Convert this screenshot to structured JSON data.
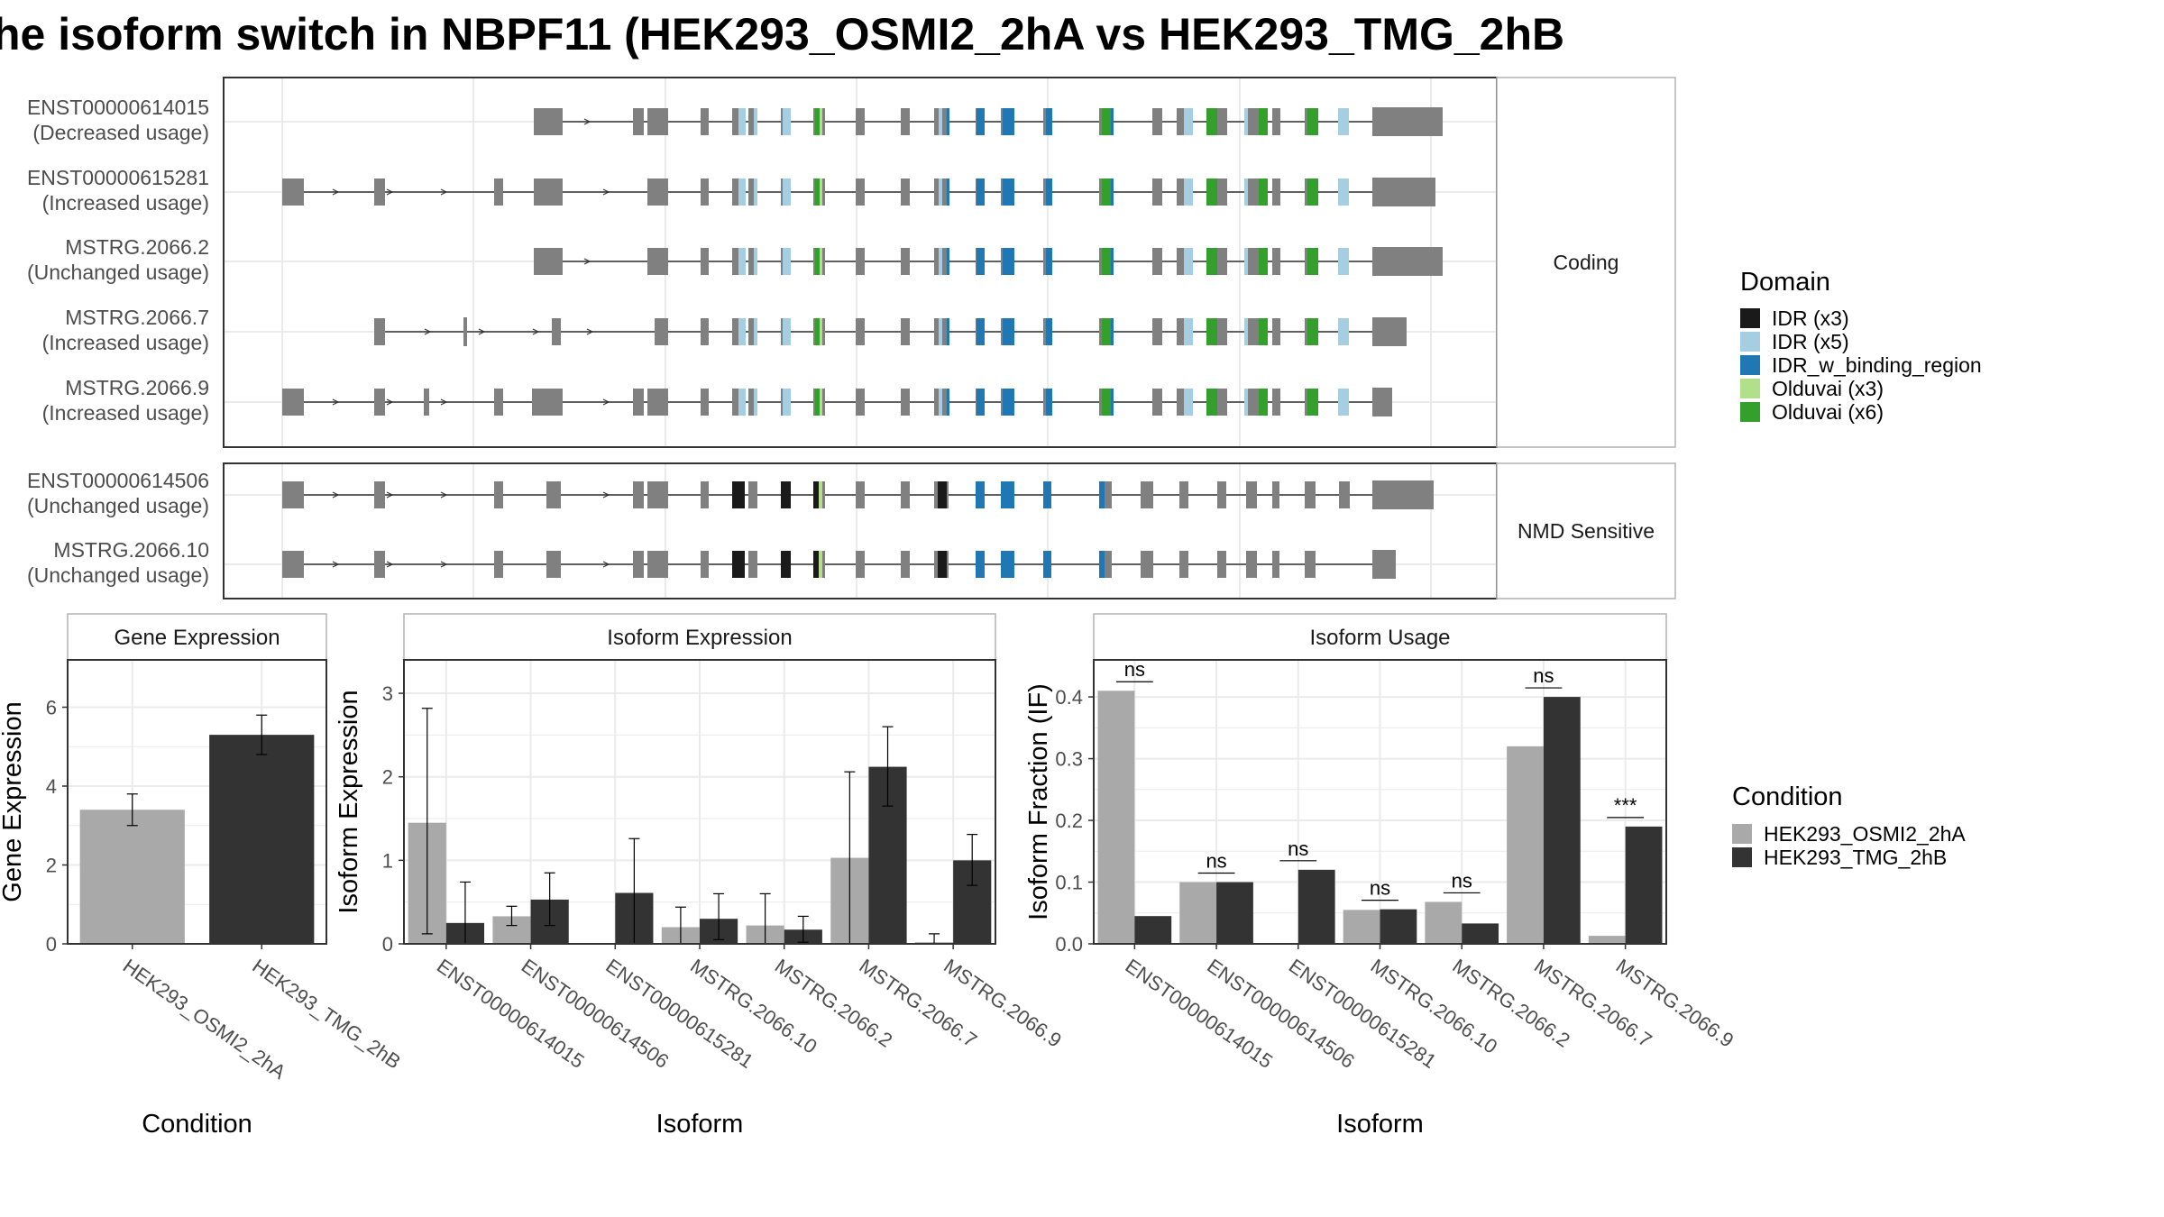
{
  "title": "he isoform switch in NBPF11 (HEK293_OSMI2_2hA vs HEK293_TMG_2hB",
  "colors": {
    "exon": "#808080",
    "cond_a": "#a9a9a9",
    "cond_b": "#333333",
    "panel_border": "#333333",
    "strip_border": "#b3b3b3",
    "grid": "#ebebeb",
    "domains": [
      "#1a1a1a",
      "#a6cee3",
      "#1f78b4",
      "#b2df8a",
      "#33a02c"
    ]
  },
  "structure": {
    "type": "isoform-structure",
    "groups": [
      {
        "label": "Coding",
        "isoforms": [
          {
            "id": "ENST00000614015",
            "usage": "(Decreased usage)"
          },
          {
            "id": "ENST00000615281",
            "usage": "(Increased usage)"
          },
          {
            "id": "MSTRG.2066.2",
            "usage": "(Unchanged usage)"
          },
          {
            "id": "MSTRG.2066.7",
            "usage": "(Increased usage)"
          },
          {
            "id": "MSTRG.2066.9",
            "usage": "(Increased usage)"
          }
        ]
      },
      {
        "label": "NMD Sensitive",
        "isoforms": [
          {
            "id": "ENST00000614506",
            "usage": "(Unchanged usage)"
          },
          {
            "id": "MSTRG.2066.10",
            "usage": "(Unchanged usage)"
          }
        ]
      }
    ]
  },
  "domain_legend": {
    "title": "Domain",
    "items": [
      "IDR (x3)",
      "IDR (x5)",
      "IDR_w_binding_region",
      "Olduvai (x3)",
      "Olduvai (x6)"
    ]
  },
  "condition_legend": {
    "title": "Condition",
    "items": [
      "HEK293_OSMI2_2hA",
      "HEK293_TMG_2hB"
    ]
  },
  "chart_data": [
    {
      "type": "bar",
      "title": "Gene Expression",
      "xlabel": "Condition",
      "ylabel": "Gene Expression",
      "ylim": [
        0,
        7.2
      ],
      "yticks": [
        0,
        2,
        4,
        6
      ],
      "categories": [
        "HEK293_OSMI2_2hA",
        "HEK293_TMG_2hB"
      ],
      "values": [
        3.4,
        5.3
      ],
      "errors": [
        [
          3.0,
          3.8
        ],
        [
          4.8,
          5.8
        ]
      ]
    },
    {
      "type": "bar",
      "title": "Isoform Expression",
      "xlabel": "Isoform",
      "ylabel": "Isoform Expression",
      "ylim": [
        0,
        3.4
      ],
      "yticks": [
        0,
        1,
        2,
        3
      ],
      "categories": [
        "ENST00000614015",
        "ENST00000614506",
        "ENST00000615281",
        "MSTRG.2066.10",
        "MSTRG.2066.2",
        "MSTRG.2066.7",
        "MSTRG.2066.9"
      ],
      "series": [
        {
          "name": "HEK293_OSMI2_2hA",
          "values": [
            1.45,
            0.33,
            0.0,
            0.2,
            0.22,
            1.03,
            0.02
          ],
          "errors": [
            [
              0.12,
              2.82
            ],
            [
              0.22,
              0.45
            ],
            [
              0.0,
              0.0
            ],
            [
              0.0,
              0.44
            ],
            [
              0.0,
              0.6
            ],
            [
              0.0,
              2.06
            ],
            [
              0.0,
              0.12
            ]
          ]
        },
        {
          "name": "HEK293_TMG_2hB",
          "values": [
            0.25,
            0.53,
            0.61,
            0.3,
            0.17,
            2.12,
            1.0
          ],
          "errors": [
            [
              0.0,
              0.74
            ],
            [
              0.22,
              0.85
            ],
            [
              0.0,
              1.26
            ],
            [
              0.05,
              0.6
            ],
            [
              0.02,
              0.33
            ],
            [
              1.65,
              2.6
            ],
            [
              0.7,
              1.31
            ]
          ]
        }
      ]
    },
    {
      "type": "bar",
      "title": "Isoform Usage",
      "xlabel": "Isoform",
      "ylabel": "Isoform Fraction (IF)",
      "ylim": [
        0,
        0.46
      ],
      "yticks": [
        0.0,
        0.1,
        0.2,
        0.3,
        0.4
      ],
      "ytick_labels": [
        "0.0",
        "0.1",
        "0.2",
        "0.3",
        "0.4"
      ],
      "categories": [
        "ENST00000614015",
        "ENST00000614506",
        "ENST00000615281",
        "MSTRG.2066.10",
        "MSTRG.2066.2",
        "MSTRG.2066.7",
        "MSTRG.2066.9"
      ],
      "series": [
        {
          "name": "HEK293_OSMI2_2hA",
          "values": [
            0.41,
            0.1,
            0.0,
            0.055,
            0.068,
            0.32,
            0.013
          ]
        },
        {
          "name": "HEK293_TMG_2hB",
          "values": [
            0.045,
            0.1,
            0.12,
            0.056,
            0.033,
            0.4,
            0.19
          ]
        }
      ],
      "significance": [
        "ns",
        "ns",
        "ns",
        "ns",
        "ns",
        "ns",
        "***"
      ]
    }
  ]
}
